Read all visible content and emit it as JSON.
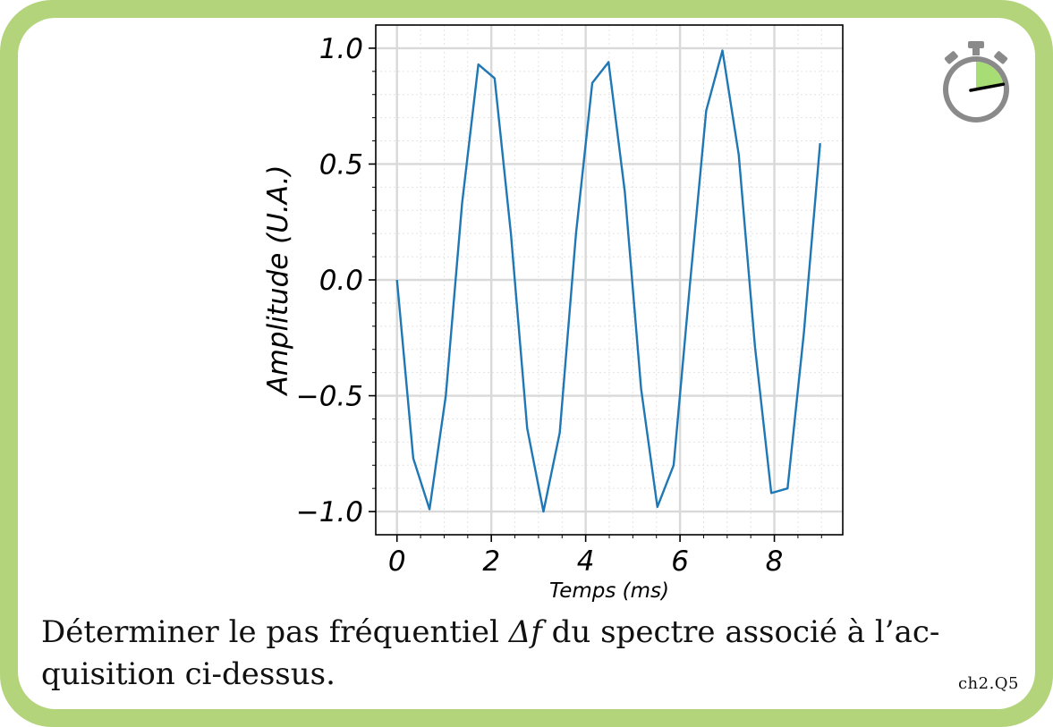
{
  "card": {
    "border_color": "#b4d47c",
    "background": "#ffffff"
  },
  "timer": {
    "icon": "stopwatch-icon",
    "ring_color": "#8a8a8a",
    "fill_color": "#a8dc74",
    "fill_fraction": 0.22
  },
  "chart_data": {
    "type": "line",
    "xlabel": "Temps (ms)",
    "ylabel": "Amplitude (U.A.)",
    "xlim": [
      -0.45,
      9.45
    ],
    "ylim": [
      -1.1,
      1.1
    ],
    "x_ticks": [
      0,
      2,
      4,
      6,
      8
    ],
    "x_tick_labels": [
      "0",
      "2",
      "4",
      "6",
      "8"
    ],
    "y_ticks": [
      -1.0,
      -0.5,
      0.0,
      0.5,
      1.0
    ],
    "y_tick_labels": [
      "−1.0",
      "−0.5",
      "0.0",
      "0.5",
      "1.0"
    ],
    "grid": true,
    "minor_grid": true,
    "line_color": "#1f77b4",
    "series": [
      {
        "x": [
          0,
          0.345,
          0.69,
          1.035,
          1.38,
          1.725,
          2.07,
          2.415,
          2.76,
          3.105,
          3.45,
          3.795,
          4.14,
          4.485,
          4.83,
          5.175,
          5.52,
          5.865,
          6.21,
          6.555,
          6.9,
          7.245,
          7.59,
          7.935,
          8.28,
          8.625,
          8.97
        ],
        "y": [
          0.0,
          -0.77,
          -0.99,
          -0.5,
          0.33,
          0.93,
          0.87,
          0.2,
          -0.64,
          -1.0,
          -0.66,
          0.2,
          0.85,
          0.94,
          0.38,
          -0.47,
          -0.98,
          -0.8,
          -0.02,
          0.73,
          0.99,
          0.54,
          -0.29,
          -0.92,
          -0.9,
          -0.23,
          0.59
        ]
      }
    ]
  },
  "question": {
    "text_before": "Déterminer le pas fréquentiel ",
    "math": "Δf",
    "text_after": " du spectre associé à l’ac-",
    "line2": "quisition ci-dessus."
  },
  "reference": "ch2.Q5"
}
